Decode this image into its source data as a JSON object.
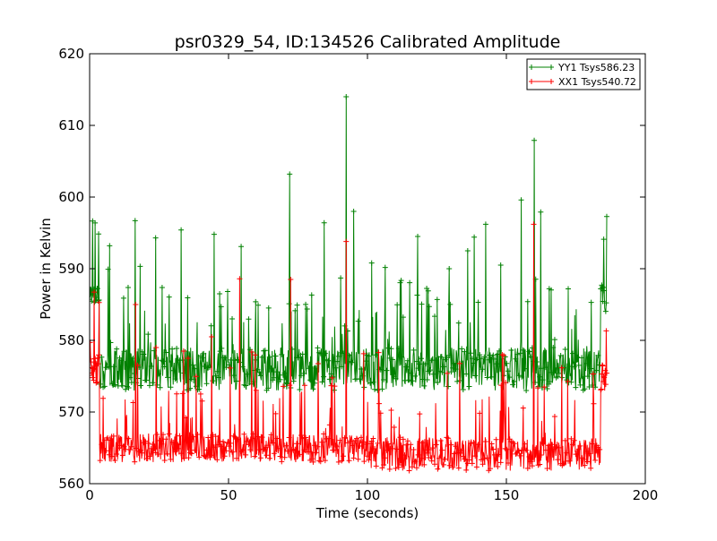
{
  "chart_data": {
    "type": "line",
    "title": "psr0329_54, ID:134526 Calibrated Amplitude",
    "xlabel": "Time (seconds)",
    "ylabel": "Power in Kelvin",
    "xlim": [
      0,
      200
    ],
    "ylim": [
      560,
      620
    ],
    "x_ticks": [
      0,
      50,
      100,
      150,
      200
    ],
    "y_ticks": [
      560,
      570,
      580,
      590,
      600,
      610,
      620
    ],
    "x_tick_labels": [
      "0",
      "50",
      "100",
      "150",
      "200"
    ],
    "y_tick_labels": [
      "560",
      "570",
      "580",
      "590",
      "600",
      "610",
      "620"
    ],
    "grid": false,
    "legend_position": "top-right",
    "marker": "+",
    "series": [
      {
        "name": "YY1 Tsys586.23",
        "color": "#008000",
        "baseline_typical": 576.5,
        "x_start": 0,
        "x_end": 186.3,
        "segments": [
          {
            "x_from": 0.0,
            "x_to": 3.6,
            "y_low": 585,
            "y_high": 588
          },
          {
            "x_from": 3.6,
            "x_to": 183.8,
            "y_low": 573,
            "y_high": 579
          },
          {
            "x_from": 183.8,
            "x_to": 186.3,
            "y_low": 583.8,
            "y_high": 588
          }
        ],
        "spikes": [
          {
            "x": 7.2,
            "y": 593.2
          },
          {
            "x": 16.4,
            "y": 596.7
          },
          {
            "x": 23.8,
            "y": 594.3
          },
          {
            "x": 33.0,
            "y": 595.4
          },
          {
            "x": 44.8,
            "y": 594.8
          },
          {
            "x": 54.5,
            "y": 593.1
          },
          {
            "x": 72.0,
            "y": 603.2
          },
          {
            "x": 84.4,
            "y": 596.4
          },
          {
            "x": 92.3,
            "y": 614.0
          },
          {
            "x": 95.0,
            "y": 598.0
          },
          {
            "x": 118.0,
            "y": 594.5
          },
          {
            "x": 138.5,
            "y": 594.4
          },
          {
            "x": 142.5,
            "y": 596.2
          },
          {
            "x": 155.3,
            "y": 599.6
          },
          {
            "x": 160.0,
            "y": 607.9
          },
          {
            "x": 162.4,
            "y": 597.9
          },
          {
            "x": 101.5,
            "y": 590.8
          },
          {
            "x": 136.0,
            "y": 592.5
          },
          {
            "x": 148.0,
            "y": 590.5
          },
          {
            "x": 129.5,
            "y": 590.0
          }
        ]
      },
      {
        "name": "XX1 Tsys540.72",
        "color": "#ff0000",
        "baseline_typical": 565,
        "x_start": 0,
        "x_end": 186.3,
        "segments": [
          {
            "x_from": 0.0,
            "x_to": 3.6,
            "y_low": 574,
            "y_high": 578
          },
          {
            "x_from": 3.6,
            "x_to": 100.0,
            "y_low": 563,
            "y_high": 567
          },
          {
            "x_from": 100.0,
            "x_to": 183.8,
            "y_low": 561.8,
            "y_high": 566.5
          },
          {
            "x_from": 183.8,
            "x_to": 186.3,
            "y_low": 572,
            "y_high": 577
          }
        ],
        "spikes": [
          {
            "x": 16.6,
            "y": 585.0
          },
          {
            "x": 54.0,
            "y": 588.6
          },
          {
            "x": 72.3,
            "y": 588.5
          },
          {
            "x": 92.4,
            "y": 593.8
          },
          {
            "x": 159.8,
            "y": 596.2
          },
          {
            "x": 24.0,
            "y": 579.0
          },
          {
            "x": 44.0,
            "y": 580.5
          },
          {
            "x": 33.8,
            "y": 578.5
          },
          {
            "x": 104.0,
            "y": 578.3
          },
          {
            "x": 148.5,
            "y": 578.0
          }
        ]
      }
    ]
  }
}
